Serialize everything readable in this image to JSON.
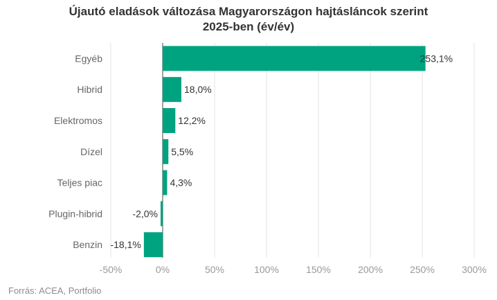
{
  "chart_data": {
    "type": "bar",
    "orientation": "horizontal",
    "title_line1": "Újautó eladások változása Magyarországon hajtásláncok szerint",
    "title_line2": "2025-ben (év/év)",
    "categories": [
      "Egyéb",
      "Hibrid",
      "Elektromos",
      "Dízel",
      "Teljes piac",
      "Plugin-hibrid",
      "Benzin"
    ],
    "values": [
      253.1,
      18.0,
      12.2,
      5.5,
      4.3,
      -2.0,
      -18.1
    ],
    "value_labels": [
      "253,1%",
      "18,0%",
      "12,2%",
      "5,5%",
      "4,3%",
      "-2,0%",
      "-18,1%"
    ],
    "x_ticks": [
      -50,
      0,
      50,
      100,
      150,
      200,
      250,
      300
    ],
    "x_tick_labels": [
      "-50%",
      "0%",
      "50%",
      "100%",
      "150%",
      "200%",
      "250%",
      "300%"
    ],
    "xlim": [
      -50,
      300
    ],
    "grid": "vertical",
    "legend": "none",
    "bar_color": "#00a37f",
    "source": "Forrás: ACEA, Portfolio"
  }
}
